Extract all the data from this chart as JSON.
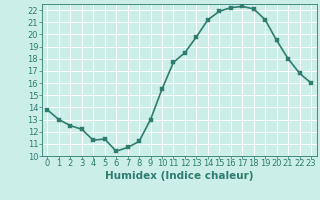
{
  "title": "",
  "xlabel": "Humidex (Indice chaleur)",
  "ylabel": "",
  "x_values": [
    0,
    1,
    2,
    3,
    4,
    5,
    6,
    7,
    8,
    9,
    10,
    11,
    12,
    13,
    14,
    15,
    16,
    17,
    18,
    19,
    20,
    21,
    22,
    23
  ],
  "y_values": [
    13.8,
    13.0,
    12.5,
    12.2,
    11.3,
    11.4,
    10.4,
    10.7,
    11.2,
    13.0,
    15.5,
    17.7,
    18.5,
    19.8,
    21.2,
    21.9,
    22.2,
    22.3,
    22.1,
    21.2,
    19.5,
    18.0,
    16.8,
    16.0
  ],
  "xlim": [
    -0.5,
    23.5
  ],
  "ylim": [
    10,
    22.5
  ],
  "yticks": [
    10,
    11,
    12,
    13,
    14,
    15,
    16,
    17,
    18,
    19,
    20,
    21,
    22
  ],
  "xticks": [
    0,
    1,
    2,
    3,
    4,
    5,
    6,
    7,
    8,
    9,
    10,
    11,
    12,
    13,
    14,
    15,
    16,
    17,
    18,
    19,
    20,
    21,
    22,
    23
  ],
  "line_color": "#2e7d6e",
  "marker_color": "#2e7d6e",
  "bg_color": "#cceee8",
  "grid_color": "#ffffff",
  "font_color": "#2e7d6e",
  "xlabel_fontsize": 7.5,
  "tick_fontsize": 6.0,
  "line_width": 1.2,
  "marker_size": 2.5
}
